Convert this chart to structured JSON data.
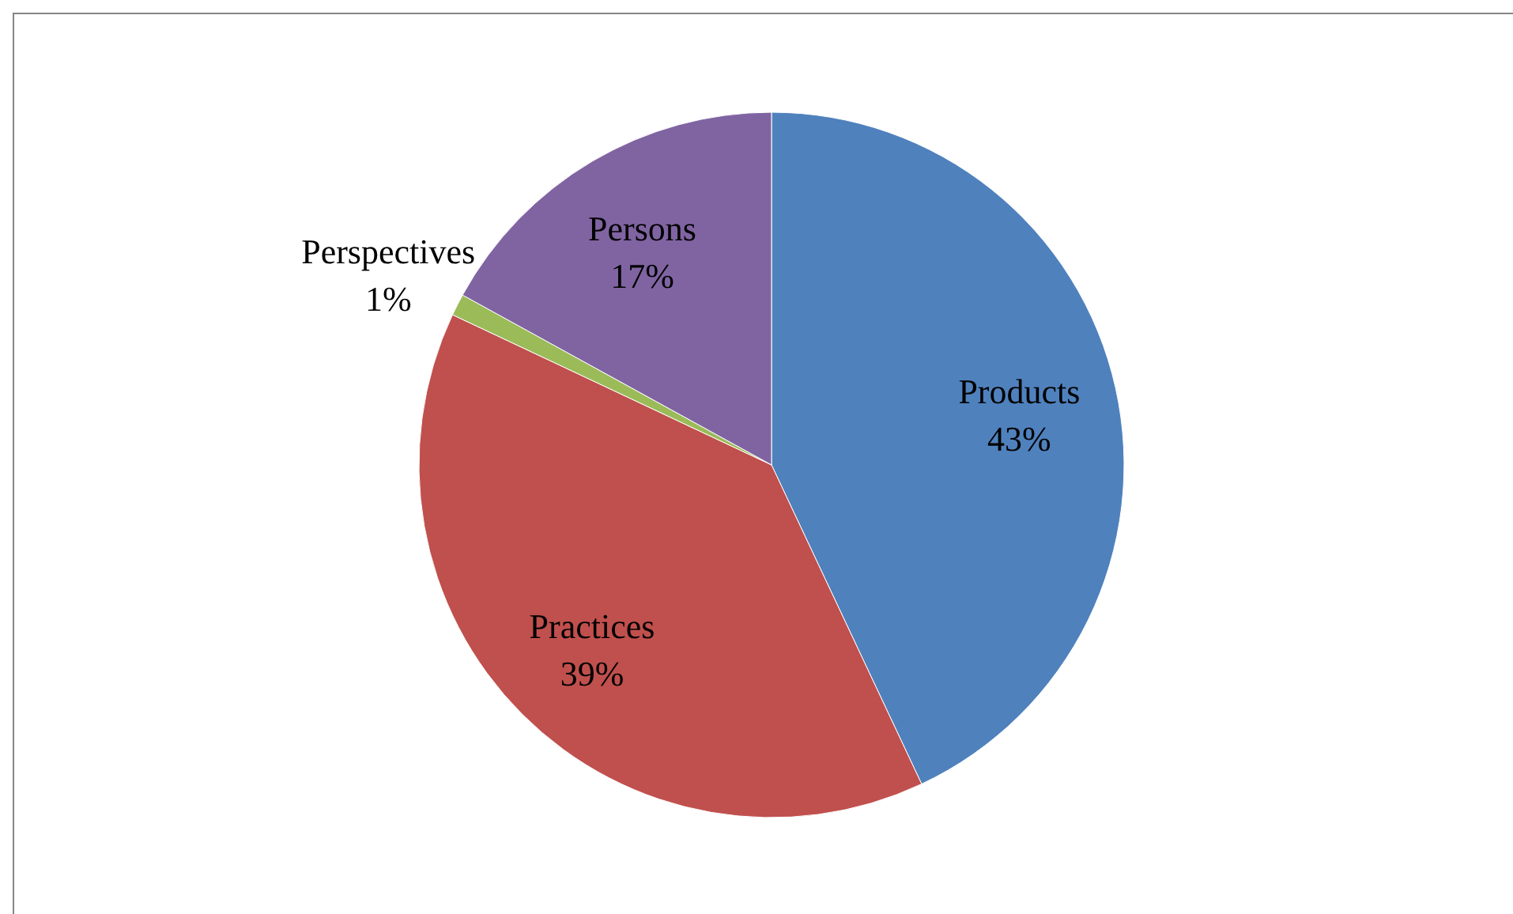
{
  "chart_data": {
    "type": "pie",
    "categories": [
      "Products",
      "Practices",
      "Perspectives",
      "Persons"
    ],
    "values": [
      43,
      39,
      1,
      17
    ],
    "value_labels": [
      "43%",
      "39%",
      "1%",
      "17%"
    ],
    "colors": [
      "#4f81bd",
      "#c0504d",
      "#9bbb59",
      "#8064a2"
    ],
    "legend": false
  }
}
